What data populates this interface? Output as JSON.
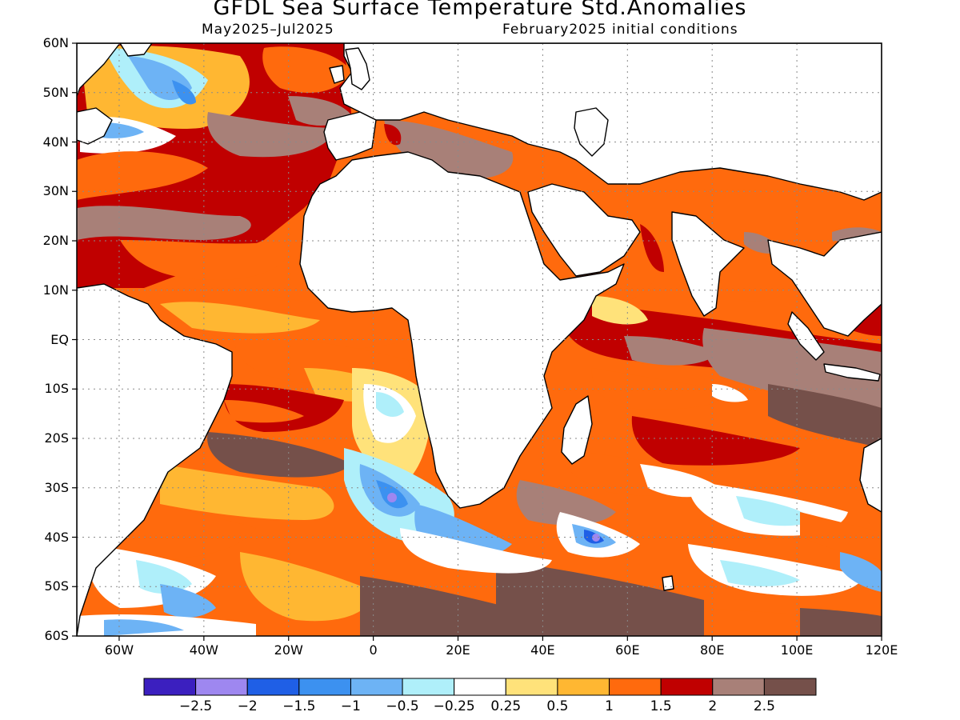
{
  "title": "GFDL Sea Surface Temperature Std.Anomalies",
  "subtitle_left": "May2025–Jul2025",
  "subtitle_right": "February2025 initial conditions",
  "lat_labels": [
    "60N",
    "50N",
    "40N",
    "30N",
    "20N",
    "10N",
    "EQ",
    "10S",
    "20S",
    "30S",
    "40S",
    "50S",
    "60S"
  ],
  "lon_labels": [
    "60W",
    "40W",
    "20W",
    "0",
    "20E",
    "40E",
    "60E",
    "80E",
    "100E",
    "120E"
  ],
  "map": {
    "lon_range": [
      -70,
      120
    ],
    "lat_range": [
      -60,
      60
    ],
    "gridlines": "dotted",
    "variable": "sea surface temperature standardized anomaly"
  },
  "colorbar": {
    "colors": [
      "#3b1fbf",
      "#9e87f0",
      "#1f5fe6",
      "#3c91f0",
      "#6db3f5",
      "#afeffa",
      "#ffffff",
      "#ffe27a",
      "#ffb732",
      "#ff6a0d",
      "#c00000",
      "#a88078",
      "#75504a"
    ],
    "tick_labels": [
      "−2.5",
      "−2",
      "−1.5",
      "−1",
      "−0.5",
      "−0.25",
      "0.25",
      "0.5",
      "1",
      "1.5",
      "2",
      "2.5"
    ]
  }
}
